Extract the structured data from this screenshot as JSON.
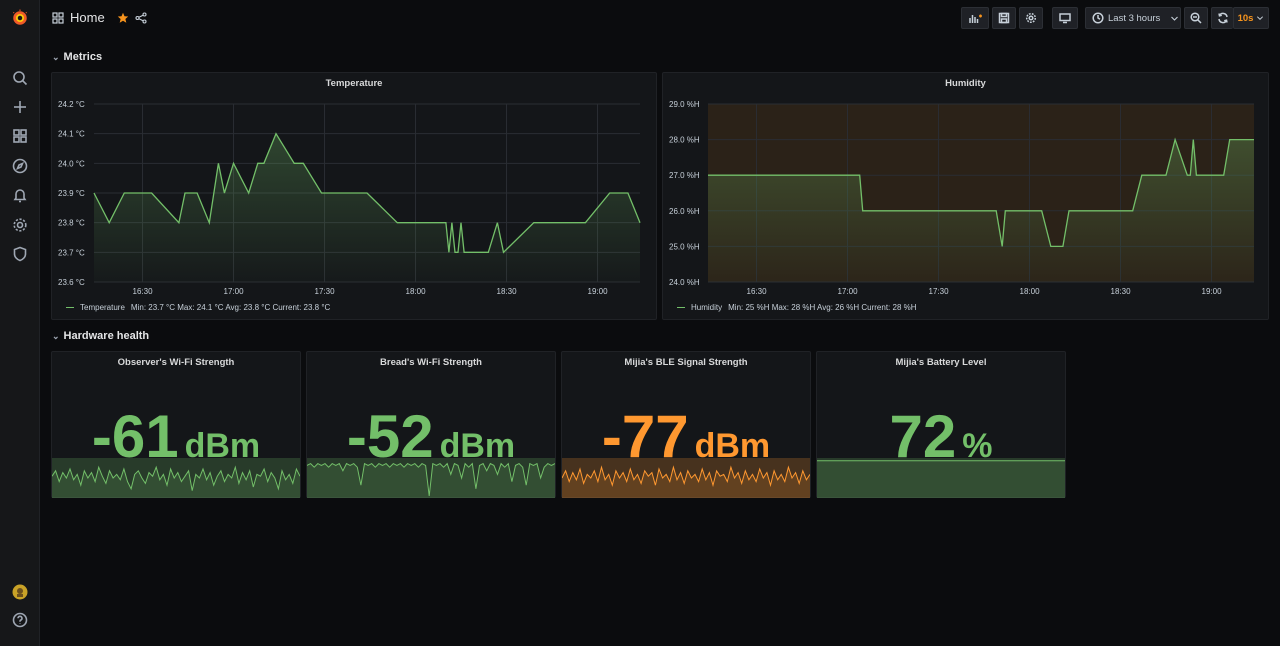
{
  "header": {
    "title": "Home",
    "time_range": "Last 3 hours",
    "refresh": "10s"
  },
  "rows": {
    "metrics": "Metrics",
    "hardware": "Hardware health"
  },
  "temperature": {
    "title": "Temperature",
    "legend": {
      "name": "Temperature",
      "stats": "Min: 23.7 °C  Max: 24.1 °C  Avg: 23.8 °C  Current: 23.8 °C"
    },
    "chart_data": {
      "type": "line",
      "ylim": [
        23.6,
        24.2
      ],
      "yticks": [
        "24.2 °C",
        "24.1 °C",
        "24.0 °C",
        "23.9 °C",
        "23.8 °C",
        "23.7 °C",
        "23.6 °C"
      ],
      "xticks": [
        "16:30",
        "17:00",
        "17:30",
        "18:00",
        "18:30",
        "19:00"
      ],
      "x_minutes": [
        0,
        5,
        10,
        13,
        19,
        28,
        30,
        34,
        38,
        41,
        43,
        46,
        51,
        54,
        56,
        60,
        66,
        69,
        75,
        80,
        90,
        100,
        110,
        116,
        117,
        118,
        119,
        120,
        121,
        122,
        128,
        130,
        133,
        135,
        145,
        155,
        162,
        170,
        176,
        180
      ],
      "values": [
        23.9,
        23.8,
        23.9,
        23.9,
        23.9,
        23.8,
        23.9,
        23.9,
        23.8,
        24.0,
        23.9,
        24.0,
        23.9,
        24.0,
        24.0,
        24.1,
        24.0,
        24.0,
        23.9,
        23.9,
        23.9,
        23.8,
        23.8,
        23.8,
        23.7,
        23.8,
        23.7,
        23.7,
        23.8,
        23.7,
        23.7,
        23.7,
        23.8,
        23.7,
        23.8,
        23.8,
        23.8,
        23.9,
        23.9,
        23.8
      ]
    }
  },
  "humidity": {
    "title": "Humidity",
    "legend": {
      "name": "Humidity",
      "stats": "Min: 25 %H  Max: 28 %H  Avg: 26 %H  Current: 28 %H"
    },
    "chart_data": {
      "type": "line",
      "ylim": [
        24,
        29
      ],
      "yticks": [
        "29.0 %H",
        "28.0 %H",
        "27.0 %H",
        "26.0 %H",
        "25.0 %H",
        "24.0 %H"
      ],
      "xticks": [
        "16:30",
        "17:00",
        "17:30",
        "18:00",
        "18:30",
        "19:00"
      ],
      "x_minutes": [
        0,
        50,
        51,
        95,
        97,
        98,
        108,
        110,
        113,
        117,
        119,
        140,
        143,
        151,
        154,
        158,
        159,
        160,
        161,
        163,
        170,
        172,
        180
      ],
      "values": [
        27,
        27,
        26,
        26,
        25,
        26,
        26,
        26,
        25,
        25,
        26,
        26,
        27,
        27,
        28,
        27,
        27,
        28,
        27,
        27,
        27,
        28,
        28
      ]
    }
  },
  "stats": [
    {
      "title": "Observer's Wi-Fi Strength",
      "value": "-61",
      "unit": "dBm",
      "color": "#73bf69",
      "spark": [
        0.55,
        0.7,
        0.4,
        0.65,
        0.5,
        0.75,
        0.45,
        0.6,
        0.3,
        0.7,
        0.5,
        0.65,
        0.4,
        0.8,
        0.55,
        0.35,
        0.7,
        0.5,
        0.6,
        0.45,
        0.75,
        0.4,
        0.2,
        0.6,
        0.7,
        0.5,
        0.35,
        0.65,
        0.55,
        0.8,
        0.45,
        0.6,
        0.3,
        0.75,
        0.5,
        0.65,
        0.4,
        0.55,
        0.7,
        0.15,
        0.6,
        0.5,
        0.75,
        0.45,
        0.65,
        0.3,
        0.55,
        0.7,
        0.4,
        0.6,
        0.5,
        0.8,
        0.35,
        0.65,
        0.45,
        0.7,
        0.25,
        0.6,
        0.55,
        0.75,
        0.4,
        0.65,
        0.5,
        0.2,
        0.7,
        0.45,
        0.6,
        0.35,
        0.75,
        0.55
      ]
    },
    {
      "title": "Bread's Wi-Fi Strength",
      "value": "-52",
      "unit": "dBm",
      "color": "#73bf69",
      "spark": [
        0.85,
        0.9,
        0.8,
        0.9,
        0.85,
        0.9,
        0.8,
        0.9,
        0.85,
        0.9,
        0.7,
        0.9,
        0.85,
        0.9,
        0.8,
        0.3,
        0.9,
        0.85,
        0.9,
        0.8,
        0.9,
        0.85,
        0.9,
        0.8,
        0.9,
        0.85,
        0.9,
        0.8,
        0.9,
        0.85,
        0.9,
        0.8,
        0.9,
        0.85,
        0.0,
        0.9,
        0.85,
        0.9,
        0.8,
        0.9,
        0.6,
        0.9,
        0.85,
        0.5,
        0.9,
        0.8,
        0.9,
        0.2,
        0.85,
        0.9,
        0.7,
        0.9,
        0.85,
        0.6,
        0.9,
        0.8,
        0.9,
        0.4,
        0.85,
        0.9,
        0.8,
        0.3,
        0.9,
        0.85,
        0.9,
        0.5,
        0.8,
        0.9,
        0.85,
        0.9
      ]
    },
    {
      "title": "Mijia's BLE Signal Strength",
      "value": "-77",
      "unit": "dBm",
      "color": "#ff9830",
      "spark": [
        0.5,
        0.7,
        0.4,
        0.65,
        0.45,
        0.75,
        0.35,
        0.6,
        0.5,
        0.7,
        0.4,
        0.8,
        0.45,
        0.6,
        0.3,
        0.7,
        0.5,
        0.65,
        0.4,
        0.75,
        0.45,
        0.6,
        0.35,
        0.7,
        0.55,
        0.65,
        0.3,
        0.75,
        0.5,
        0.6,
        0.4,
        0.8,
        0.45,
        0.65,
        0.35,
        0.7,
        0.5,
        0.6,
        0.4,
        0.75,
        0.45,
        0.65,
        0.3,
        0.7,
        0.55,
        0.6,
        0.4,
        0.8,
        0.5,
        0.65,
        0.35,
        0.7,
        0.45,
        0.6,
        0.4,
        0.75,
        0.5,
        0.65,
        0.3,
        0.7,
        0.45,
        0.6,
        0.4,
        0.8,
        0.5,
        0.65,
        0.35,
        0.7,
        0.45,
        0.6
      ]
    },
    {
      "title": "Mijia's Battery Level",
      "value": "72",
      "unit": "%",
      "color": "#73bf69",
      "spark": [
        0.98,
        0.98,
        0.98,
        0.98,
        0.98,
        0.98,
        0.98,
        0.98,
        0.98,
        0.98,
        0.98,
        0.98,
        0.98,
        0.98,
        0.98,
        0.98,
        0.98,
        0.98,
        0.98,
        0.98
      ]
    }
  ]
}
